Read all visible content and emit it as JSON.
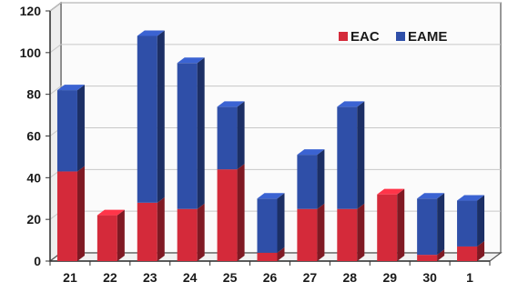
{
  "chart_data": {
    "type": "bar",
    "stacked": true,
    "three_d": true,
    "categories": [
      "21",
      "22",
      "23",
      "24",
      "25",
      "26",
      "27",
      "28",
      "29",
      "30",
      "1"
    ],
    "series": [
      {
        "name": "EAC",
        "color": "#d42a3a",
        "values": [
          43,
          22,
          28,
          25,
          44,
          4,
          25,
          25,
          32,
          3,
          7
        ]
      },
      {
        "name": "EAME",
        "color": "#2f4fa8",
        "values": [
          39,
          0,
          80,
          70,
          30,
          26,
          26,
          49,
          0,
          27,
          22
        ]
      }
    ],
    "ylim": [
      0,
      120
    ],
    "yticks": [
      "0",
      "20",
      "40",
      "60",
      "80",
      "100",
      "120"
    ],
    "grid": true,
    "legend": "top-right",
    "title": "",
    "xlabel": "",
    "ylabel": ""
  }
}
